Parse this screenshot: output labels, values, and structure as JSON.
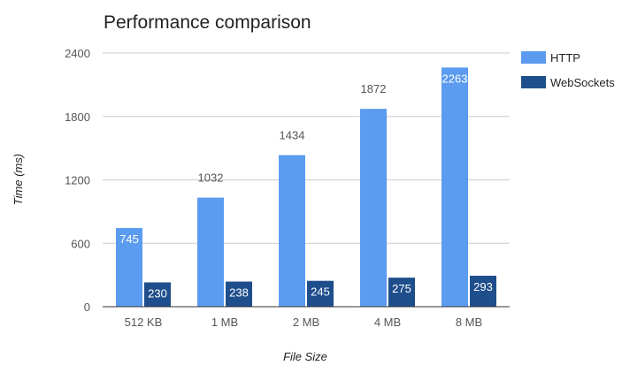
{
  "chart_data": {
    "type": "bar",
    "title": "Performance comparison",
    "xlabel": "File Size",
    "ylabel": "Time (ms)",
    "categories": [
      "512 KB",
      "1 MB",
      "2 MB",
      "4 MB",
      "8 MB"
    ],
    "series": [
      {
        "name": "HTTP",
        "values": [
          745,
          1032,
          1434,
          1872,
          2263
        ],
        "color": "#5b9bf0"
      },
      {
        "name": "WebSockets",
        "values": [
          230,
          238,
          245,
          275,
          293
        ],
        "color": "#1f4e8c"
      }
    ],
    "ylim": [
      0,
      2400
    ],
    "yticks": [
      0,
      600,
      1200,
      1800,
      2400
    ],
    "grid": true,
    "legend": "right"
  }
}
